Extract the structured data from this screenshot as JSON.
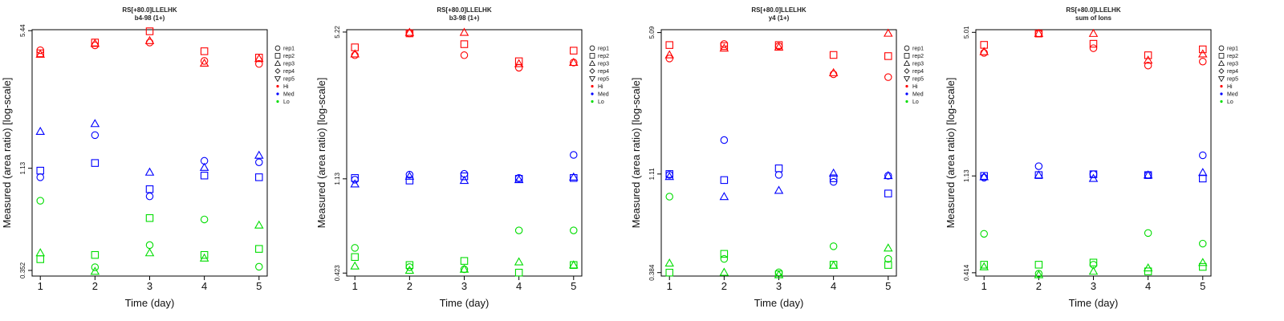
{
  "colors": {
    "Hi": "#ff0000",
    "Med": "#0000ff",
    "Lo": "#00dd00"
  },
  "chart_data": [
    {
      "type": "scatter",
      "title": "RS[+80.0]LLELHK",
      "subtitle": "b4-98 (1+)",
      "xlabel": "Time (day)",
      "ylabel": "Measured (area ratio) [log-scale]",
      "yscale": "log",
      "ylim": [
        0.33,
        5.5
      ],
      "xlim": [
        0.85,
        5.15
      ],
      "xticks": [
        "1",
        "2",
        "3",
        "4",
        "5"
      ],
      "yticks": [
        {
          "value": 0.352,
          "label": "0.352"
        },
        {
          "value": 1.13,
          "label": "1.13"
        },
        {
          "value": 5.44,
          "label": "5.44"
        }
      ],
      "legend": {
        "position": "right",
        "entries": [
          {
            "label": "rep1",
            "marker": "circle"
          },
          {
            "label": "rep2",
            "marker": "square"
          },
          {
            "label": "rep3",
            "marker": "triangle"
          },
          {
            "label": "rep4",
            "marker": "diamond"
          },
          {
            "label": "rep5",
            "marker": "triangle-down"
          },
          {
            "label": "Hi",
            "marker": "dot",
            "color": "#ff0000"
          },
          {
            "label": "Med",
            "marker": "dot",
            "color": "#0000ff"
          },
          {
            "label": "Lo",
            "marker": "dot",
            "color": "#00dd00"
          }
        ]
      },
      "series": [
        {
          "group": "Hi",
          "rep": "rep1",
          "values": [
            4.35,
            4.6,
            4.75,
            3.85,
            3.72
          ]
        },
        {
          "group": "Hi",
          "rep": "rep2",
          "values": [
            4.2,
            4.75,
            5.4,
            4.3,
            4.0
          ]
        },
        {
          "group": "Hi",
          "rep": "rep3",
          "values": [
            4.15,
            4.7,
            4.85,
            3.75,
            3.95
          ]
        },
        {
          "group": "Med",
          "rep": "rep1",
          "values": [
            1.02,
            1.65,
            0.82,
            1.23,
            1.21
          ]
        },
        {
          "group": "Med",
          "rep": "rep2",
          "values": [
            1.1,
            1.2,
            0.89,
            1.04,
            1.02
          ]
        },
        {
          "group": "Med",
          "rep": "rep3",
          "values": [
            1.72,
            1.88,
            1.08,
            1.14,
            1.31
          ]
        },
        {
          "group": "Lo",
          "rep": "rep1",
          "values": [
            0.78,
            0.365,
            0.47,
            0.63,
            0.367
          ]
        },
        {
          "group": "Lo",
          "rep": "rep2",
          "values": [
            0.4,
            0.42,
            0.64,
            0.42,
            0.45
          ]
        },
        {
          "group": "Lo",
          "rep": "rep3",
          "values": [
            0.43,
            0.348,
            0.43,
            0.405,
            0.59
          ]
        }
      ]
    },
    {
      "type": "scatter",
      "title": "RS[+80.0]LLELHK",
      "subtitle": "b3-98 (1+)",
      "xlabel": "Time (day)",
      "ylabel": "Measured (area ratio) [log-scale]",
      "yscale": "log",
      "ylim": [
        0.41,
        5.35
      ],
      "xlim": [
        0.85,
        5.15
      ],
      "xticks": [
        "1",
        "2",
        "3",
        "4",
        "5"
      ],
      "yticks": [
        {
          "value": 0.423,
          "label": "0.423"
        },
        {
          "value": 1.13,
          "label": "1.13"
        },
        {
          "value": 5.22,
          "label": "5.22"
        }
      ],
      "legend": {
        "position": "right",
        "entries": [
          {
            "label": "rep1",
            "marker": "circle"
          },
          {
            "label": "rep2",
            "marker": "square"
          },
          {
            "label": "rep3",
            "marker": "triangle"
          },
          {
            "label": "rep4",
            "marker": "diamond"
          },
          {
            "label": "rep5",
            "marker": "triangle-down"
          },
          {
            "label": "Hi",
            "marker": "dot",
            "color": "#ff0000"
          },
          {
            "label": "Med",
            "marker": "dot",
            "color": "#0000ff"
          },
          {
            "label": "Lo",
            "marker": "dot",
            "color": "#00dd00"
          }
        ]
      },
      "series": [
        {
          "group": "Hi",
          "rep": "rep1",
          "values": [
            4.1,
            5.15,
            4.1,
            3.6,
            3.8
          ]
        },
        {
          "group": "Hi",
          "rep": "rep2",
          "values": [
            4.45,
            5.15,
            4.6,
            3.85,
            4.3
          ]
        },
        {
          "group": "Hi",
          "rep": "rep3",
          "values": [
            4.15,
            5.2,
            5.2,
            3.75,
            3.8
          ]
        },
        {
          "group": "Med",
          "rep": "rep1",
          "values": [
            1.12,
            1.18,
            1.19,
            1.14,
            1.45
          ]
        },
        {
          "group": "Med",
          "rep": "rep2",
          "values": [
            1.14,
            1.11,
            1.16,
            1.13,
            1.14
          ]
        },
        {
          "group": "Med",
          "rep": "rep3",
          "values": [
            1.07,
            1.16,
            1.11,
            1.12,
            1.15
          ]
        },
        {
          "group": "Lo",
          "rep": "rep1",
          "values": [
            0.55,
            0.45,
            0.44,
            0.66,
            0.66
          ]
        },
        {
          "group": "Lo",
          "rep": "rep2",
          "values": [
            0.5,
            0.46,
            0.48,
            0.425,
            0.46
          ]
        },
        {
          "group": "Lo",
          "rep": "rep3",
          "values": [
            0.455,
            0.435,
            0.44,
            0.475,
            0.46
          ]
        }
      ]
    },
    {
      "type": "scatter",
      "title": "RS[+80.0]LLELHK",
      "subtitle": "y4 (1+)",
      "xlabel": "Time (day)",
      "ylabel": "Measured (area ratio) [log-scale]",
      "yscale": "log",
      "ylim": [
        0.37,
        5.25
      ],
      "xlim": [
        0.85,
        5.15
      ],
      "xticks": [
        "1",
        "2",
        "3",
        "4",
        "5"
      ],
      "yticks": [
        {
          "value": 0.384,
          "label": "0.384"
        },
        {
          "value": 1.11,
          "label": "1.11"
        },
        {
          "value": 5.09,
          "label": "5.09"
        }
      ],
      "legend": {
        "position": "right",
        "entries": [
          {
            "label": "rep1",
            "marker": "circle"
          },
          {
            "label": "rep2",
            "marker": "square"
          },
          {
            "label": "rep3",
            "marker": "triangle"
          },
          {
            "label": "rep4",
            "marker": "diamond"
          },
          {
            "label": "rep5",
            "marker": "triangle-down"
          },
          {
            "label": "Hi",
            "marker": "dot",
            "color": "#ff0000"
          },
          {
            "label": "Med",
            "marker": "dot",
            "color": "#0000ff"
          },
          {
            "label": "Lo",
            "marker": "dot",
            "color": "#00dd00"
          }
        ]
      },
      "series": [
        {
          "group": "Hi",
          "rep": "rep1",
          "values": [
            3.85,
            4.5,
            4.4,
            3.25,
            3.15
          ]
        },
        {
          "group": "Hi",
          "rep": "rep2",
          "values": [
            4.45,
            4.4,
            4.45,
            4.0,
            3.95
          ]
        },
        {
          "group": "Hi",
          "rep": "rep3",
          "values": [
            4.0,
            4.3,
            4.35,
            3.3,
            5.05
          ]
        },
        {
          "group": "Med",
          "rep": "rep1",
          "values": [
            1.1,
            1.6,
            1.1,
            1.02,
            1.09
          ]
        },
        {
          "group": "Med",
          "rep": "rep2",
          "values": [
            1.11,
            1.04,
            1.18,
            1.06,
            0.9
          ]
        },
        {
          "group": "Med",
          "rep": "rep3",
          "values": [
            1.08,
            0.87,
            0.93,
            1.12,
            1.09
          ]
        },
        {
          "group": "Lo",
          "rep": "rep1",
          "values": [
            0.87,
            0.445,
            0.385,
            0.51,
            0.445
          ]
        },
        {
          "group": "Lo",
          "rep": "rep2",
          "values": [
            0.384,
            0.47,
            0.377,
            0.418,
            0.417
          ]
        },
        {
          "group": "Lo",
          "rep": "rep3",
          "values": [
            0.425,
            0.385,
            0.375,
            0.415,
            0.5
          ]
        }
      ]
    },
    {
      "type": "scatter",
      "title": "RS[+80.0]LLELHK",
      "subtitle": "sum of Ions",
      "xlabel": "Time (day)",
      "ylabel": "Measured (area ratio) [log-scale]",
      "yscale": "log",
      "ylim": [
        0.4,
        5.15
      ],
      "xlim": [
        0.85,
        5.15
      ],
      "xticks": [
        "1",
        "2",
        "3",
        "4",
        "5"
      ],
      "yticks": [
        {
          "value": 0.414,
          "label": "0.414"
        },
        {
          "value": 1.13,
          "label": "1.13"
        },
        {
          "value": 5.01,
          "label": "5.01"
        }
      ],
      "legend": {
        "position": "right",
        "entries": [
          {
            "label": "rep1",
            "marker": "circle"
          },
          {
            "label": "rep2",
            "marker": "square"
          },
          {
            "label": "rep3",
            "marker": "triangle"
          },
          {
            "label": "rep4",
            "marker": "diamond"
          },
          {
            "label": "rep5",
            "marker": "triangle-down"
          },
          {
            "label": "Hi",
            "marker": "dot",
            "color": "#ff0000"
          },
          {
            "label": "Med",
            "marker": "dot",
            "color": "#0000ff"
          },
          {
            "label": "Lo",
            "marker": "dot",
            "color": "#00dd00"
          }
        ]
      },
      "series": [
        {
          "group": "Hi",
          "rep": "rep1",
          "values": [
            4.05,
            4.95,
            4.25,
            3.55,
            3.7
          ]
        },
        {
          "group": "Hi",
          "rep": "rep2",
          "values": [
            4.4,
            4.95,
            4.45,
            3.95,
            4.2
          ]
        },
        {
          "group": "Hi",
          "rep": "rep3",
          "values": [
            4.1,
            4.95,
            4.95,
            3.75,
            4.0
          ]
        },
        {
          "group": "Med",
          "rep": "rep1",
          "values": [
            1.11,
            1.25,
            1.15,
            1.14,
            1.4
          ]
        },
        {
          "group": "Med",
          "rep": "rep2",
          "values": [
            1.13,
            1.14,
            1.15,
            1.14,
            1.1
          ]
        },
        {
          "group": "Med",
          "rep": "rep3",
          "values": [
            1.12,
            1.14,
            1.1,
            1.14,
            1.17
          ]
        },
        {
          "group": "Lo",
          "rep": "rep1",
          "values": [
            0.62,
            0.41,
            0.45,
            0.625,
            0.56
          ]
        },
        {
          "group": "Lo",
          "rep": "rep2",
          "values": [
            0.45,
            0.45,
            0.46,
            0.42,
            0.44
          ]
        },
        {
          "group": "Lo",
          "rep": "rep3",
          "values": [
            0.44,
            0.405,
            0.42,
            0.435,
            0.46
          ]
        }
      ]
    }
  ]
}
